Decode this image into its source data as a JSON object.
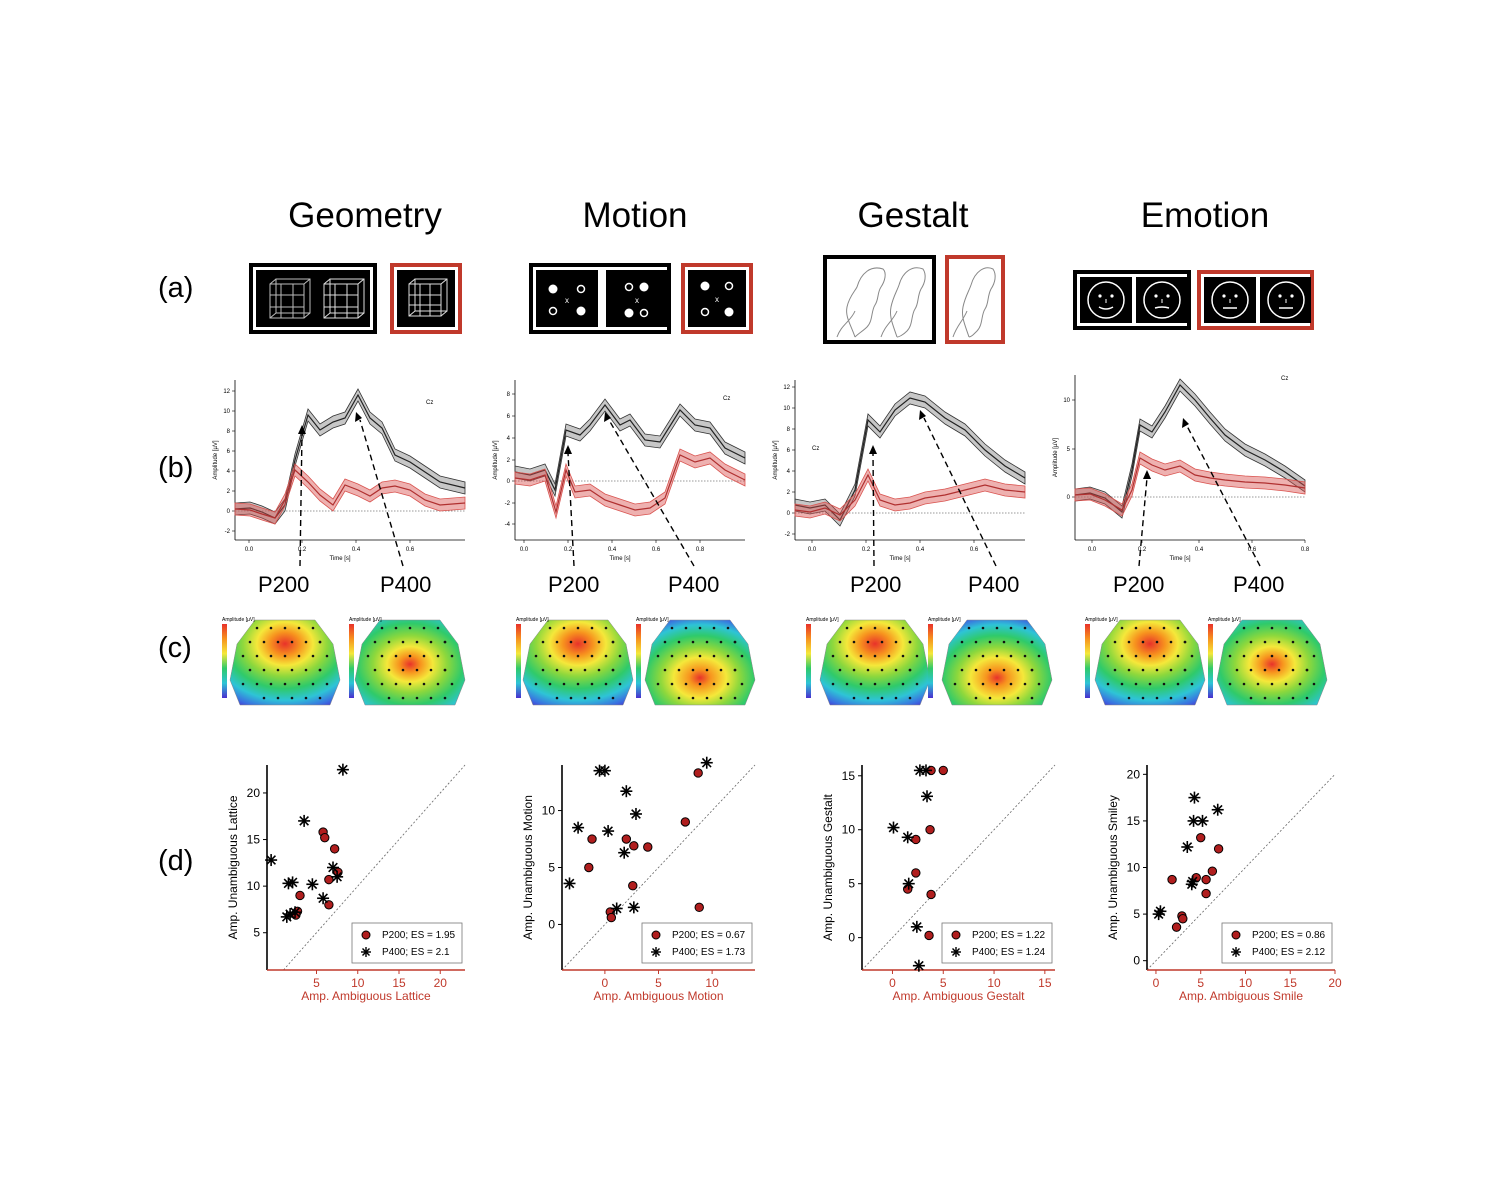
{
  "figure": {
    "columns": [
      "Geometry",
      "Motion",
      "Gestalt",
      "Emotion"
    ],
    "row_labels": [
      "(a)",
      "(b)",
      "(c)",
      "(d)"
    ],
    "peak_labels": [
      "P200",
      "P400"
    ],
    "colors": {
      "ambiguous": "#d9534f",
      "unambiguous": "#555555",
      "frame_ambiguous": "#c0392b"
    }
  },
  "erp": {
    "ylabel": "Amplitude [µV]",
    "xlabel": "Time [s]",
    "channel": "Cz"
  },
  "topo": {
    "colorbar_label": "Amplitude [µV]"
  },
  "chart_data": [
    {
      "type": "scatter",
      "panel": "Geometry",
      "xlabel": "Amp. Ambiguous Lattice",
      "ylabel": "Amp. Unambiguous Lattice",
      "xlim": [
        -1,
        23
      ],
      "ylim": [
        1,
        23
      ],
      "xticks": [
        5,
        10,
        15,
        20
      ],
      "yticks": [
        5,
        10,
        15,
        20
      ],
      "legend": [
        "P200; ES = 1.95",
        "P400; ES = 2.1"
      ],
      "series": [
        {
          "name": "P200; ES = 1.95",
          "marker": "dot",
          "x": [
            5.8,
            6.0,
            7.2,
            7.6,
            6.5,
            3.0,
            2.7,
            2.5,
            6.5
          ],
          "y": [
            15.8,
            15.2,
            14.0,
            11.5,
            10.7,
            9.0,
            7.3,
            6.9,
            8.0
          ]
        },
        {
          "name": "P400; ES = 2.1",
          "marker": "star",
          "x": [
            8.2,
            3.5,
            -0.5,
            2.1,
            1.6,
            4.5,
            7.0,
            7.5,
            5.8,
            1.8,
            1.4,
            2.4
          ],
          "y": [
            22.5,
            17.0,
            12.8,
            10.4,
            10.3,
            10.2,
            12.0,
            11.0,
            8.7,
            7.0,
            6.7,
            7.2
          ]
        }
      ]
    },
    {
      "type": "scatter",
      "panel": "Motion",
      "xlabel": "Amp. Ambiguous Motion",
      "ylabel": "Amp. Unambiguous Motion",
      "xlim": [
        -4,
        14
      ],
      "ylim": [
        -4,
        14
      ],
      "xticks": [
        0,
        5,
        10
      ],
      "yticks": [
        0,
        5,
        10
      ],
      "legend": [
        "P200; ES = 0.67",
        "P400; ES = 1.73"
      ],
      "series": [
        {
          "name": "P200; ES = 0.67",
          "marker": "dot",
          "x": [
            8.7,
            7.5,
            -1.2,
            -1.5,
            2.0,
            4.0,
            2.7,
            2.6,
            0.5,
            0.6,
            8.8
          ],
          "y": [
            13.3,
            9.0,
            7.5,
            5.0,
            7.5,
            6.8,
            6.9,
            3.4,
            1.1,
            0.6,
            1.5
          ]
        },
        {
          "name": "P400; ES = 1.73",
          "marker": "star",
          "x": [
            -0.5,
            0.0,
            9.5,
            2.0,
            2.9,
            -2.5,
            0.3,
            1.8,
            -3.3,
            2.7,
            1.1
          ],
          "y": [
            13.5,
            13.5,
            14.2,
            11.7,
            9.7,
            8.5,
            8.2,
            6.3,
            3.6,
            1.5,
            1.4
          ]
        }
      ]
    },
    {
      "type": "scatter",
      "panel": "Gestalt",
      "xlabel": "Amp. Ambiguous Gestalt",
      "ylabel": "Amp. Unambiguous Gestalt",
      "xlim": [
        -3,
        16
      ],
      "ylim": [
        -3,
        16
      ],
      "xticks": [
        0,
        5,
        10,
        15
      ],
      "yticks": [
        0,
        5,
        10,
        15
      ],
      "legend": [
        "P200; ES = 1.22",
        "P400; ES = 1.24"
      ],
      "series": [
        {
          "name": "P200; ES = 1.22",
          "marker": "dot",
          "x": [
            3.8,
            5.0,
            3.7,
            2.3,
            2.3,
            1.5,
            3.8,
            3.6
          ],
          "y": [
            15.5,
            15.5,
            10.0,
            9.1,
            6.0,
            4.5,
            4.0,
            0.2
          ]
        },
        {
          "name": "P400; ES = 1.24",
          "marker": "star",
          "x": [
            2.7,
            3.3,
            3.4,
            0.1,
            1.5,
            1.6,
            2.4,
            2.6
          ],
          "y": [
            15.5,
            15.5,
            13.1,
            10.2,
            9.3,
            5.0,
            1.0,
            -2.6
          ]
        }
      ]
    },
    {
      "type": "scatter",
      "panel": "Emotion",
      "xlabel": "Amp. Ambiguous Smile",
      "ylabel": "Amp. Unambiguous Smiley",
      "xlim": [
        -1,
        20
      ],
      "ylim": [
        -1,
        21
      ],
      "xticks": [
        0,
        5,
        10,
        15,
        20
      ],
      "yticks": [
        0,
        5,
        10,
        15,
        20
      ],
      "legend": [
        "P200; ES = 0.86",
        "P400; ES = 2.12"
      ],
      "series": [
        {
          "name": "P200; ES = 0.86",
          "marker": "dot",
          "x": [
            5.0,
            7.0,
            6.3,
            1.8,
            5.6,
            4.5,
            5.6,
            2.9,
            3.0,
            2.3
          ],
          "y": [
            13.2,
            12.0,
            9.6,
            8.7,
            8.7,
            8.9,
            7.2,
            4.8,
            4.5,
            3.6
          ]
        },
        {
          "name": "P400; ES = 2.12",
          "marker": "star",
          "x": [
            4.3,
            6.9,
            4.2,
            5.2,
            3.5,
            4.0,
            4.1,
            0.5,
            0.3
          ],
          "y": [
            17.5,
            16.2,
            15.0,
            15.0,
            12.2,
            8.2,
            8.5,
            5.3,
            5.0
          ]
        }
      ]
    }
  ]
}
